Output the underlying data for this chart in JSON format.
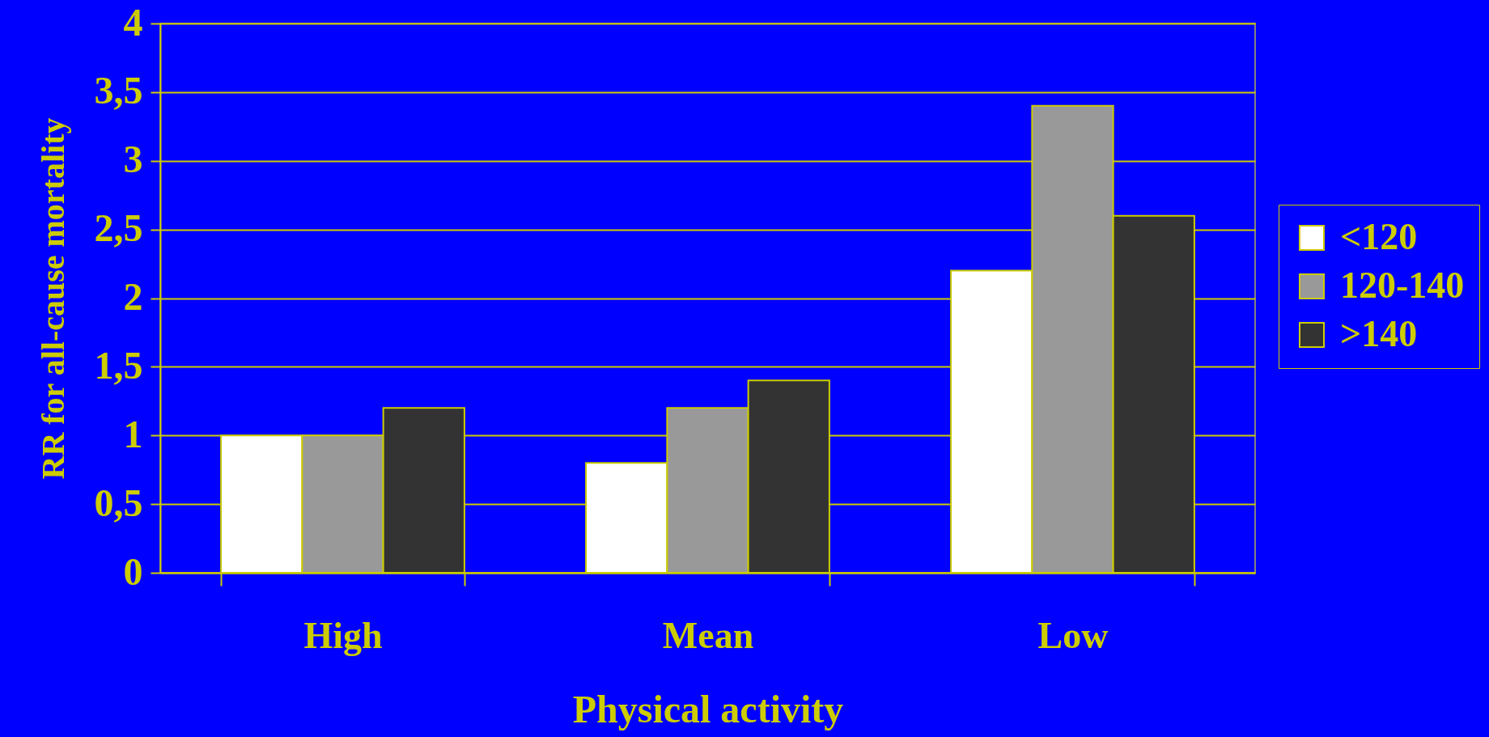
{
  "chart_data": {
    "type": "bar",
    "xlabel": "Physical activity",
    "ylabel": "RR for all-cause mortality",
    "categories": [
      "High",
      "Mean",
      "Low"
    ],
    "series": [
      {
        "name": "<120",
        "color": "#ffffff",
        "values": [
          1,
          0.8,
          2.2
        ]
      },
      {
        "name": "120-140",
        "color": "#999999",
        "values": [
          1,
          1.2,
          3.4
        ]
      },
      {
        "name": ">140",
        "color": "#333333",
        "values": [
          1.2,
          1.4,
          2.6
        ]
      }
    ],
    "ylim": [
      0,
      4
    ],
    "yticks": [
      0,
      {
        "value": 0.5,
        "label": "0,5"
      },
      1,
      {
        "value": 1.5,
        "label": "1,5"
      },
      2,
      {
        "value": 2.5,
        "label": "2,5"
      },
      3,
      {
        "value": 3.5,
        "label": "3,5"
      },
      4
    ],
    "grid": "y",
    "legend": "right"
  }
}
